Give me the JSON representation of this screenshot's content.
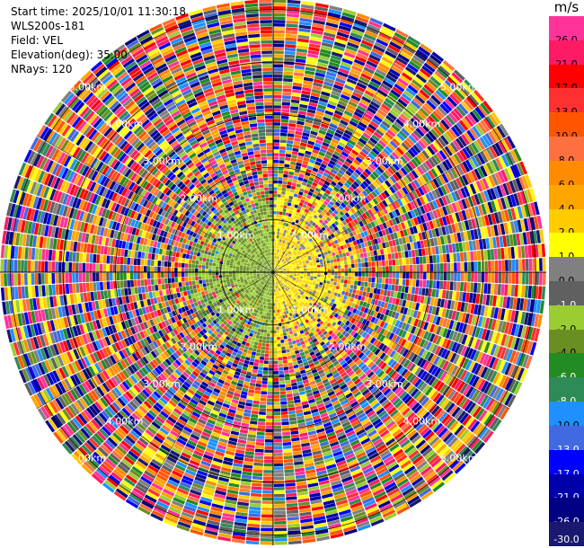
{
  "header": {
    "start_time": "Start time: 2025/10/01 11:30:18",
    "site": "WLS200s-181",
    "field": "Field: VEL",
    "elevation": "Elevation(deg): 35.00",
    "nrays": "NRays: 120"
  },
  "chart_data": {
    "type": "heatmap",
    "projection": "polar-ppi",
    "field": "VEL",
    "unit": "m/s",
    "n_rays": 120,
    "elevation_deg": 35.0,
    "range_rings_km": [
      1.0,
      2.0,
      3.0,
      4.0,
      5.0
    ],
    "range_ring_labels": [
      "1.00km",
      "2.00km",
      "3.00km",
      "4.00km",
      "5.00km"
    ],
    "max_range_km": 5.2,
    "colorbar": {
      "labels": [
        "26.0",
        "21.0",
        "17.0",
        "13.0",
        "10.0",
        "8.0",
        "6.0",
        "4.0",
        "2.0",
        "1.0",
        "0.0",
        "-1.0",
        "-2.0",
        "-4.0",
        "-6.0",
        "-8.0",
        "-10.0",
        "-13.0",
        "-17.0",
        "-21.0",
        "-26.0",
        "-30.0"
      ],
      "colors": [
        "#ff3399",
        "#ff1a66",
        "#ff0000",
        "#ff3030",
        "#ff5500",
        "#ff7040",
        "#ff8c00",
        "#ffa500",
        "#ffcc00",
        "#ffff00",
        "#808080",
        "#606060",
        "#9acd32",
        "#6b8e23",
        "#228b22",
        "#2e8b57",
        "#1e90ff",
        "#4169e1",
        "#0000ff",
        "#0000aa",
        "#000080",
        "#191970"
      ]
    },
    "near_field": {
      "radius_km": 1.6,
      "approaching_sector_deg": [
        180,
        360
      ],
      "approaching_value_ms": -3.0,
      "receding_value_ms": 1.5
    },
    "far_field": "aliased noise"
  }
}
